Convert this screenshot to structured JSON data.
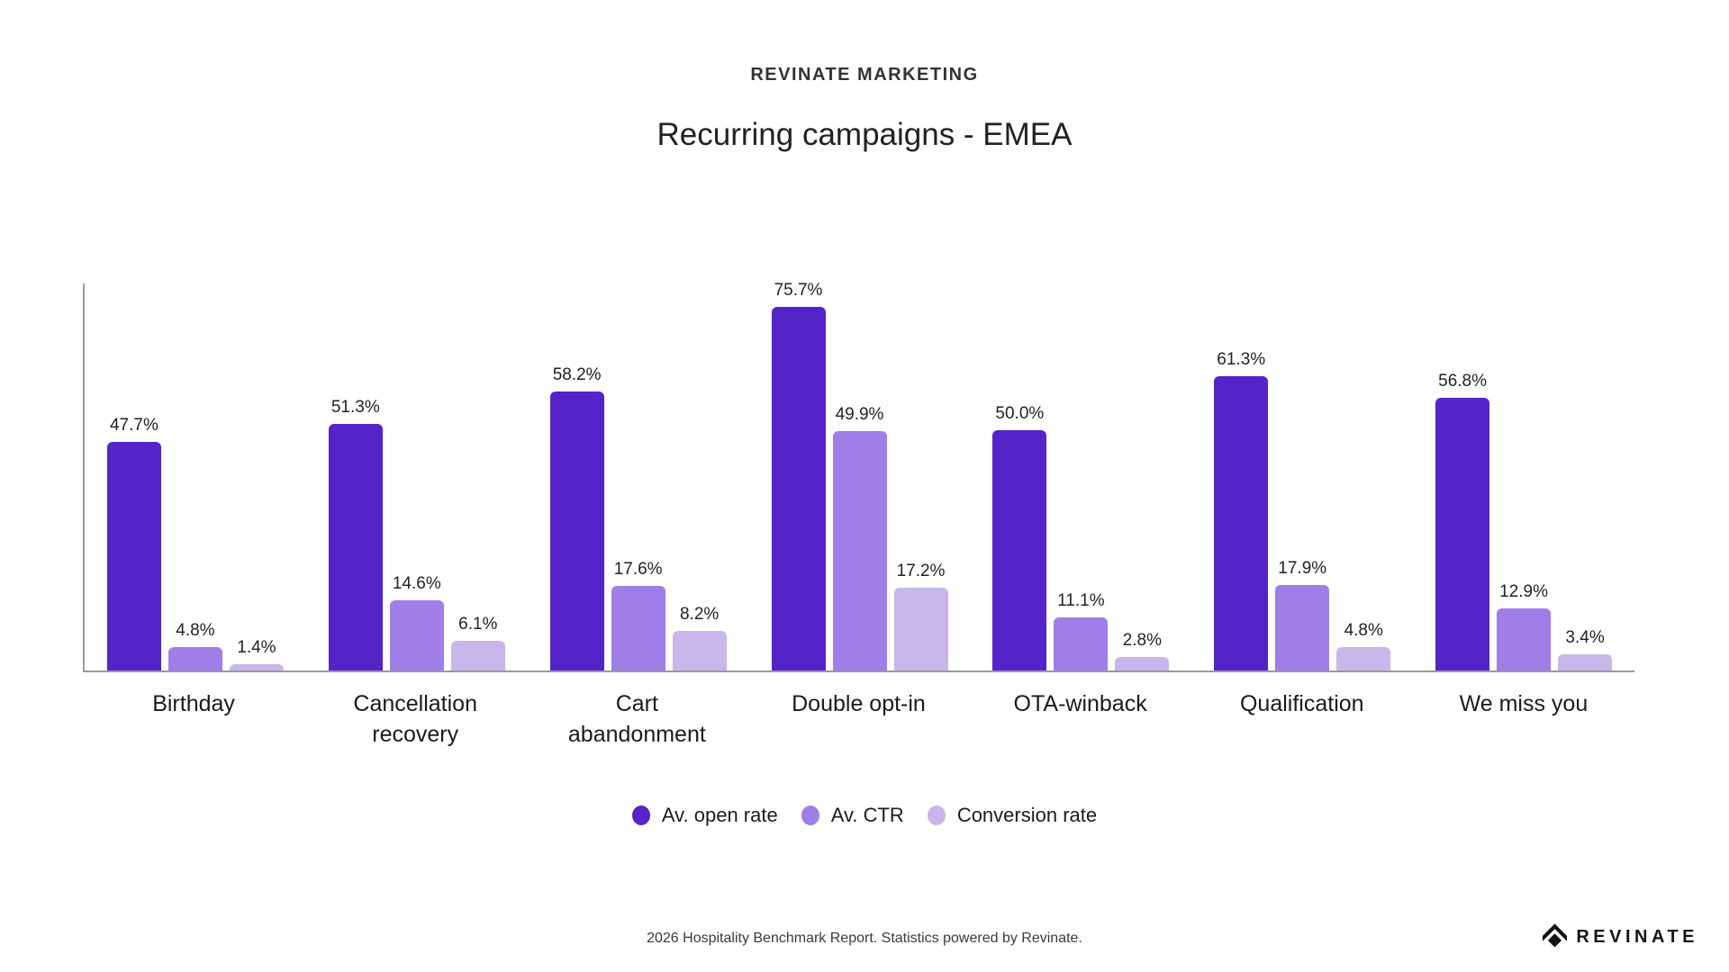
{
  "header": {
    "eyebrow": "REVINATE MARKETING",
    "title": "Recurring campaigns - EMEA"
  },
  "chart_data": {
    "type": "bar",
    "title": "Recurring campaigns - EMEA",
    "categories": [
      "Birthday",
      "Cancellation recovery",
      "Cart abandonment",
      "Double opt-in",
      "OTA-winback",
      "Qualification",
      "We miss you"
    ],
    "series": [
      {
        "name": "Av. open rate",
        "color": "#5424c9",
        "values": [
          47.7,
          51.3,
          58.2,
          75.7,
          50.0,
          61.3,
          56.8
        ],
        "labels": [
          "47.7%",
          "51.3%",
          "58.2%",
          "75.7%",
          "50.0%",
          "61.3%",
          "56.8%"
        ]
      },
      {
        "name": "Av. CTR",
        "color": "#9f7ee8",
        "values": [
          4.8,
          14.6,
          17.6,
          49.9,
          11.1,
          17.9,
          12.9
        ],
        "labels": [
          "4.8%",
          "14.6%",
          "17.6%",
          "49.9%",
          "11.1%",
          "17.9%",
          "12.9%"
        ]
      },
      {
        "name": "Conversion rate",
        "color": "#c8b7ea",
        "values": [
          1.4,
          6.1,
          8.2,
          17.2,
          2.8,
          4.8,
          3.4
        ],
        "labels": [
          "1.4%",
          "6.1%",
          "8.2%",
          "17.2%",
          "2.8%",
          "4.8%",
          "3.4%"
        ]
      }
    ],
    "xlabel": "",
    "ylabel": "",
    "ylim": [
      0,
      81
    ],
    "grid": false,
    "legend_position": "bottom",
    "axis_color": "#9a9a9a"
  },
  "footer": {
    "note": "2026 Hospitality Benchmark Report. Statistics powered by Revinate.",
    "brand": "REVINATE"
  }
}
